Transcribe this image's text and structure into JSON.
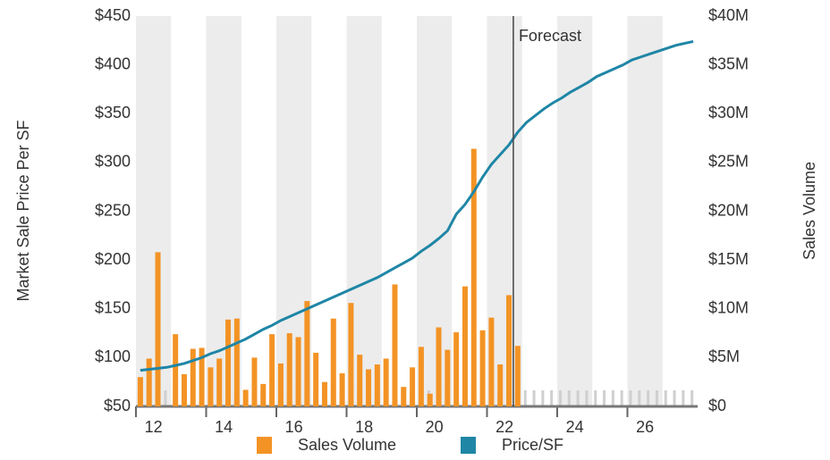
{
  "chart_data": {
    "type": "combo",
    "y_label": "Market Sale Price Per SF",
    "y2_label": "Sales Volume",
    "categories": [
      "12",
      null,
      null,
      null,
      null,
      null,
      null,
      null,
      "14",
      null,
      null,
      null,
      null,
      null,
      null,
      null,
      "16",
      null,
      null,
      null,
      null,
      null,
      null,
      null,
      "18",
      null,
      null,
      null,
      null,
      null,
      null,
      null,
      "20",
      null,
      null,
      null,
      null,
      null,
      null,
      null,
      "22",
      null,
      null,
      null,
      null,
      null,
      null,
      null,
      "24",
      null,
      null,
      null,
      null,
      null,
      null,
      null,
      "26",
      null,
      null,
      null,
      null,
      null,
      null,
      null
    ],
    "series": [
      {
        "name": "Sales Volume",
        "type": "bar",
        "axis": "y2",
        "color": "#f39325",
        "values": [
          3.0,
          4.9,
          15.8,
          null,
          7.4,
          3.3,
          5.9,
          6.0,
          4.0,
          4.9,
          8.9,
          9.0,
          1.7,
          5.0,
          2.3,
          7.4,
          4.4,
          7.5,
          7.1,
          10.8,
          5.5,
          2.5,
          9.0,
          3.4,
          10.6,
          5.3,
          3.8,
          4.3,
          4.9,
          12.5,
          2.0,
          4.0,
          6.1,
          1.3,
          8.1,
          5.8,
          7.6,
          12.3,
          26.4,
          7.8,
          9.1,
          4.3,
          11.4,
          6.2,
          null,
          null,
          null,
          null,
          null,
          null,
          null,
          null,
          null,
          null,
          null,
          null,
          null,
          null,
          null,
          null,
          null,
          null,
          null,
          null
        ]
      },
      {
        "name": "Price/SF",
        "type": "line",
        "color": "#1f86a6",
        "values": [
          87,
          88,
          89,
          90,
          92,
          94,
          97,
          100,
          104,
          107,
          111,
          115,
          119,
          124,
          129,
          133,
          138,
          142,
          146,
          150,
          154,
          158,
          162,
          166,
          170,
          174,
          178,
          182,
          187,
          192,
          197,
          202,
          209,
          215,
          222,
          230,
          247,
          257,
          270,
          285,
          298,
          308,
          318,
          331,
          341,
          348,
          355,
          361,
          366,
          372,
          377,
          382,
          388,
          392,
          396,
          400,
          405,
          408,
          411,
          414,
          417,
          420,
          422,
          424
        ]
      }
    ],
    "ylim": [
      50,
      450
    ],
    "yticks": [
      {
        "value": 50,
        "label": "$50"
      },
      {
        "value": 100,
        "label": "$100"
      },
      {
        "value": 150,
        "label": "$150"
      },
      {
        "value": 200,
        "label": "$200"
      },
      {
        "value": 250,
        "label": "$250"
      },
      {
        "value": 300,
        "label": "$300"
      },
      {
        "value": 350,
        "label": "$350"
      },
      {
        "value": 400,
        "label": "$400"
      },
      {
        "value": 450,
        "label": "$450"
      }
    ],
    "y2lim": [
      0,
      40
    ],
    "y2ticks": [
      {
        "value": 0,
        "label": "$0"
      },
      {
        "value": 5,
        "label": "$5M"
      },
      {
        "value": 10,
        "label": "$10M"
      },
      {
        "value": 15,
        "label": "$15M"
      },
      {
        "value": 20,
        "label": "$20M"
      },
      {
        "value": 25,
        "label": "$25M"
      },
      {
        "value": 30,
        "label": "$30M"
      },
      {
        "value": 35,
        "label": "$35M"
      },
      {
        "value": 40,
        "label": "$40M"
      }
    ],
    "annotations": [
      {
        "text": "Forecast",
        "index": 43
      }
    ]
  }
}
